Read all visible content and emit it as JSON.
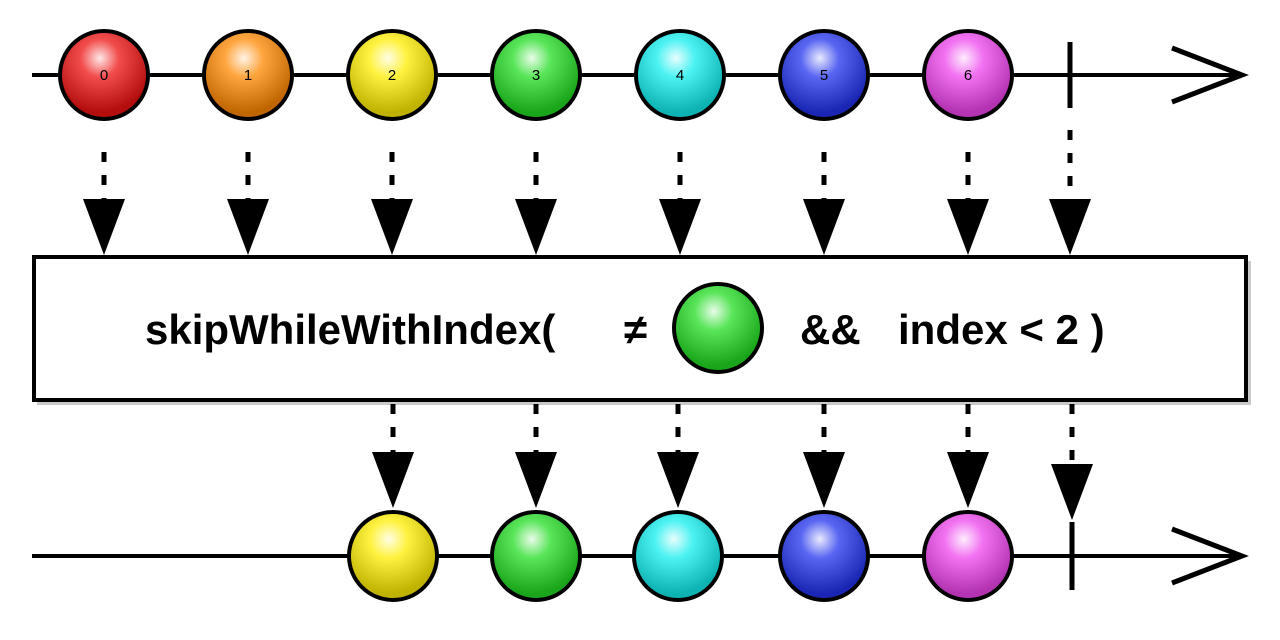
{
  "operator": {
    "name_label": "skipWhileWithIndex(",
    "neq_symbol": "≠",
    "and_symbol": "&&",
    "index_condition": "index < 2 )",
    "predicate_marble_color": "#22dd22"
  },
  "input_stream": {
    "marbles": [
      {
        "label": "0",
        "color": "#ee1111"
      },
      {
        "label": "1",
        "color": "#ff8800"
      },
      {
        "label": "2",
        "color": "#ffee00"
      },
      {
        "label": "3",
        "color": "#22dd22"
      },
      {
        "label": "4",
        "color": "#11eeee"
      },
      {
        "label": "5",
        "color": "#2233ee"
      },
      {
        "label": "6",
        "color": "#ee44ee"
      }
    ],
    "completed": true
  },
  "output_stream": {
    "marbles": [
      {
        "label": "",
        "color": "#ffee00"
      },
      {
        "label": "",
        "color": "#22dd22"
      },
      {
        "label": "",
        "color": "#11eeee"
      },
      {
        "label": "",
        "color": "#2233ee"
      },
      {
        "label": "",
        "color": "#ee44ee"
      }
    ],
    "completed": true
  }
}
